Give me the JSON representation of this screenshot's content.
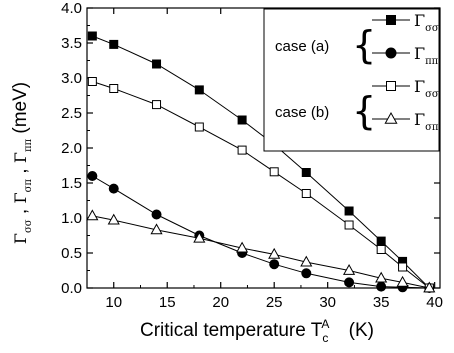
{
  "chart_data": {
    "type": "line",
    "xlabel": {
      "main": "Critical temperature T",
      "sub": "c",
      "sup": "A",
      "unit": "(K)"
    },
    "ylabel": {
      "main": "Γ",
      "subs": [
        "σσ",
        "σπ",
        "ππ"
      ],
      "unit": "(meV)"
    },
    "xlim": [
      7.5,
      40.5
    ],
    "ylim": [
      0,
      4.0
    ],
    "xticks": [
      10,
      15,
      20,
      25,
      30,
      35,
      40
    ],
    "yticks": [
      0.0,
      0.5,
      1.0,
      1.5,
      2.0,
      2.5,
      3.0,
      3.5,
      4.0
    ],
    "ytick_labels": [
      "0.0",
      "0.5",
      "1.0",
      "1.5",
      "2.0",
      "2.5",
      "3.0",
      "3.5",
      "4.0"
    ],
    "grid": false,
    "legend_position": "top-right",
    "legend_groups": [
      {
        "label": "case (a)",
        "entries": [
          0,
          1
        ]
      },
      {
        "label": "case (b)",
        "entries": [
          2,
          3
        ]
      }
    ],
    "series": [
      {
        "name": "Γσσ",
        "symbol": "Γ",
        "sub": "σσ",
        "marker": "square",
        "filled": true,
        "x": [
          8,
          10,
          14,
          18,
          22,
          25,
          28,
          32,
          35,
          37,
          39.5
        ],
        "y": [
          3.6,
          3.48,
          3.2,
          2.83,
          2.4,
          2.05,
          1.65,
          1.1,
          0.67,
          0.38,
          0.0
        ]
      },
      {
        "name": "Γππ",
        "symbol": "Γ",
        "sub": "ππ",
        "marker": "circle",
        "filled": true,
        "x": [
          8,
          10,
          14,
          18,
          22,
          25,
          28,
          32,
          35,
          37,
          39.5
        ],
        "y": [
          1.6,
          1.42,
          1.05,
          0.75,
          0.5,
          0.34,
          0.21,
          0.08,
          0.02,
          0.01,
          0.0
        ]
      },
      {
        "name": "Γσσ",
        "symbol": "Γ",
        "sub": "σσ",
        "marker": "square",
        "filled": false,
        "x": [
          8,
          10,
          14,
          18,
          22,
          25,
          28,
          32,
          35,
          37,
          39.5
        ],
        "y": [
          2.95,
          2.85,
          2.62,
          2.3,
          1.97,
          1.66,
          1.35,
          0.9,
          0.55,
          0.3,
          0.0
        ]
      },
      {
        "name": "Γσπ",
        "symbol": "Γ",
        "sub": "σπ",
        "marker": "triangle",
        "filled": false,
        "x": [
          8,
          10,
          14,
          18,
          22,
          25,
          28,
          32,
          35,
          37,
          39.5
        ],
        "y": [
          1.03,
          0.97,
          0.83,
          0.71,
          0.57,
          0.48,
          0.37,
          0.25,
          0.14,
          0.08,
          0.0
        ]
      }
    ]
  }
}
